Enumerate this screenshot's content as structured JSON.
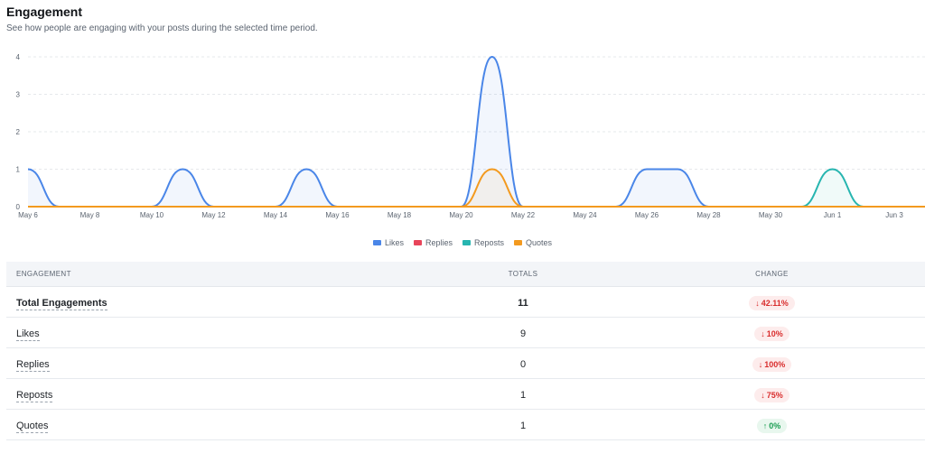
{
  "header": {
    "title": "Engagement",
    "subtitle": "See how people are engaging with your posts during the selected time period."
  },
  "chart_data": {
    "type": "area",
    "title": "",
    "xlabel": "",
    "ylabel": "",
    "ylim": [
      0,
      4
    ],
    "y_ticks": [
      "0",
      "1",
      "2",
      "3",
      "4"
    ],
    "grid": true,
    "legend_position": "bottom",
    "x": [
      "May 6",
      "May 7",
      "May 8",
      "May 9",
      "May 10",
      "May 11",
      "May 12",
      "May 13",
      "May 14",
      "May 15",
      "May 16",
      "May 17",
      "May 18",
      "May 19",
      "May 20",
      "May 21",
      "May 22",
      "May 23",
      "May 24",
      "May 25",
      "May 26",
      "May 27",
      "May 28",
      "May 29",
      "May 30",
      "May 31",
      "Jun 1",
      "Jun 2",
      "Jun 3"
    ],
    "x_tick_labels": [
      "May 6",
      "May 8",
      "May 10",
      "May 12",
      "May 14",
      "May 16",
      "May 18",
      "May 20",
      "May 22",
      "May 24",
      "May 26",
      "May 28",
      "May 30",
      "Jun 1",
      "Jun 3"
    ],
    "series": [
      {
        "name": "Likes",
        "color": "#4a86e8",
        "values": [
          1,
          0,
          0,
          0,
          0,
          1,
          0,
          0,
          0,
          1,
          0,
          0,
          0,
          0,
          0,
          4,
          0,
          0,
          0,
          0,
          1,
          1,
          0,
          0,
          0,
          0,
          0,
          0,
          0
        ]
      },
      {
        "name": "Replies",
        "color": "#e8455a",
        "values": [
          0,
          0,
          0,
          0,
          0,
          0,
          0,
          0,
          0,
          0,
          0,
          0,
          0,
          0,
          0,
          0,
          0,
          0,
          0,
          0,
          0,
          0,
          0,
          0,
          0,
          0,
          0,
          0,
          0
        ]
      },
      {
        "name": "Reposts",
        "color": "#27b5b0",
        "values": [
          0,
          0,
          0,
          0,
          0,
          0,
          0,
          0,
          0,
          0,
          0,
          0,
          0,
          0,
          0,
          0,
          0,
          0,
          0,
          0,
          0,
          0,
          0,
          0,
          0,
          0,
          1,
          0,
          0
        ]
      },
      {
        "name": "Quotes",
        "color": "#f39a1f",
        "values": [
          0,
          0,
          0,
          0,
          0,
          0,
          0,
          0,
          0,
          0,
          0,
          0,
          0,
          0,
          0,
          1,
          0,
          0,
          0,
          0,
          0,
          0,
          0,
          0,
          0,
          0,
          0,
          0,
          0
        ]
      }
    ]
  },
  "legend": [
    {
      "label": "Likes",
      "color": "#4a86e8"
    },
    {
      "label": "Replies",
      "color": "#e8455a"
    },
    {
      "label": "Reposts",
      "color": "#27b5b0"
    },
    {
      "label": "Quotes",
      "color": "#f39a1f"
    }
  ],
  "table": {
    "headers": {
      "engagement": "ENGAGEMENT",
      "totals": "TOTALS",
      "change": "CHANGE"
    },
    "rows": [
      {
        "label": "Total Engagements",
        "total": "11",
        "change": "42.11%",
        "direction": "down",
        "arrow": "↓"
      },
      {
        "label": "Likes",
        "total": "9",
        "change": "10%",
        "direction": "down",
        "arrow": "↓"
      },
      {
        "label": "Replies",
        "total": "0",
        "change": "100%",
        "direction": "down",
        "arrow": "↓"
      },
      {
        "label": "Reposts",
        "total": "1",
        "change": "75%",
        "direction": "down",
        "arrow": "↓"
      },
      {
        "label": "Quotes",
        "total": "1",
        "change": "0%",
        "direction": "up",
        "arrow": "↑"
      }
    ]
  }
}
